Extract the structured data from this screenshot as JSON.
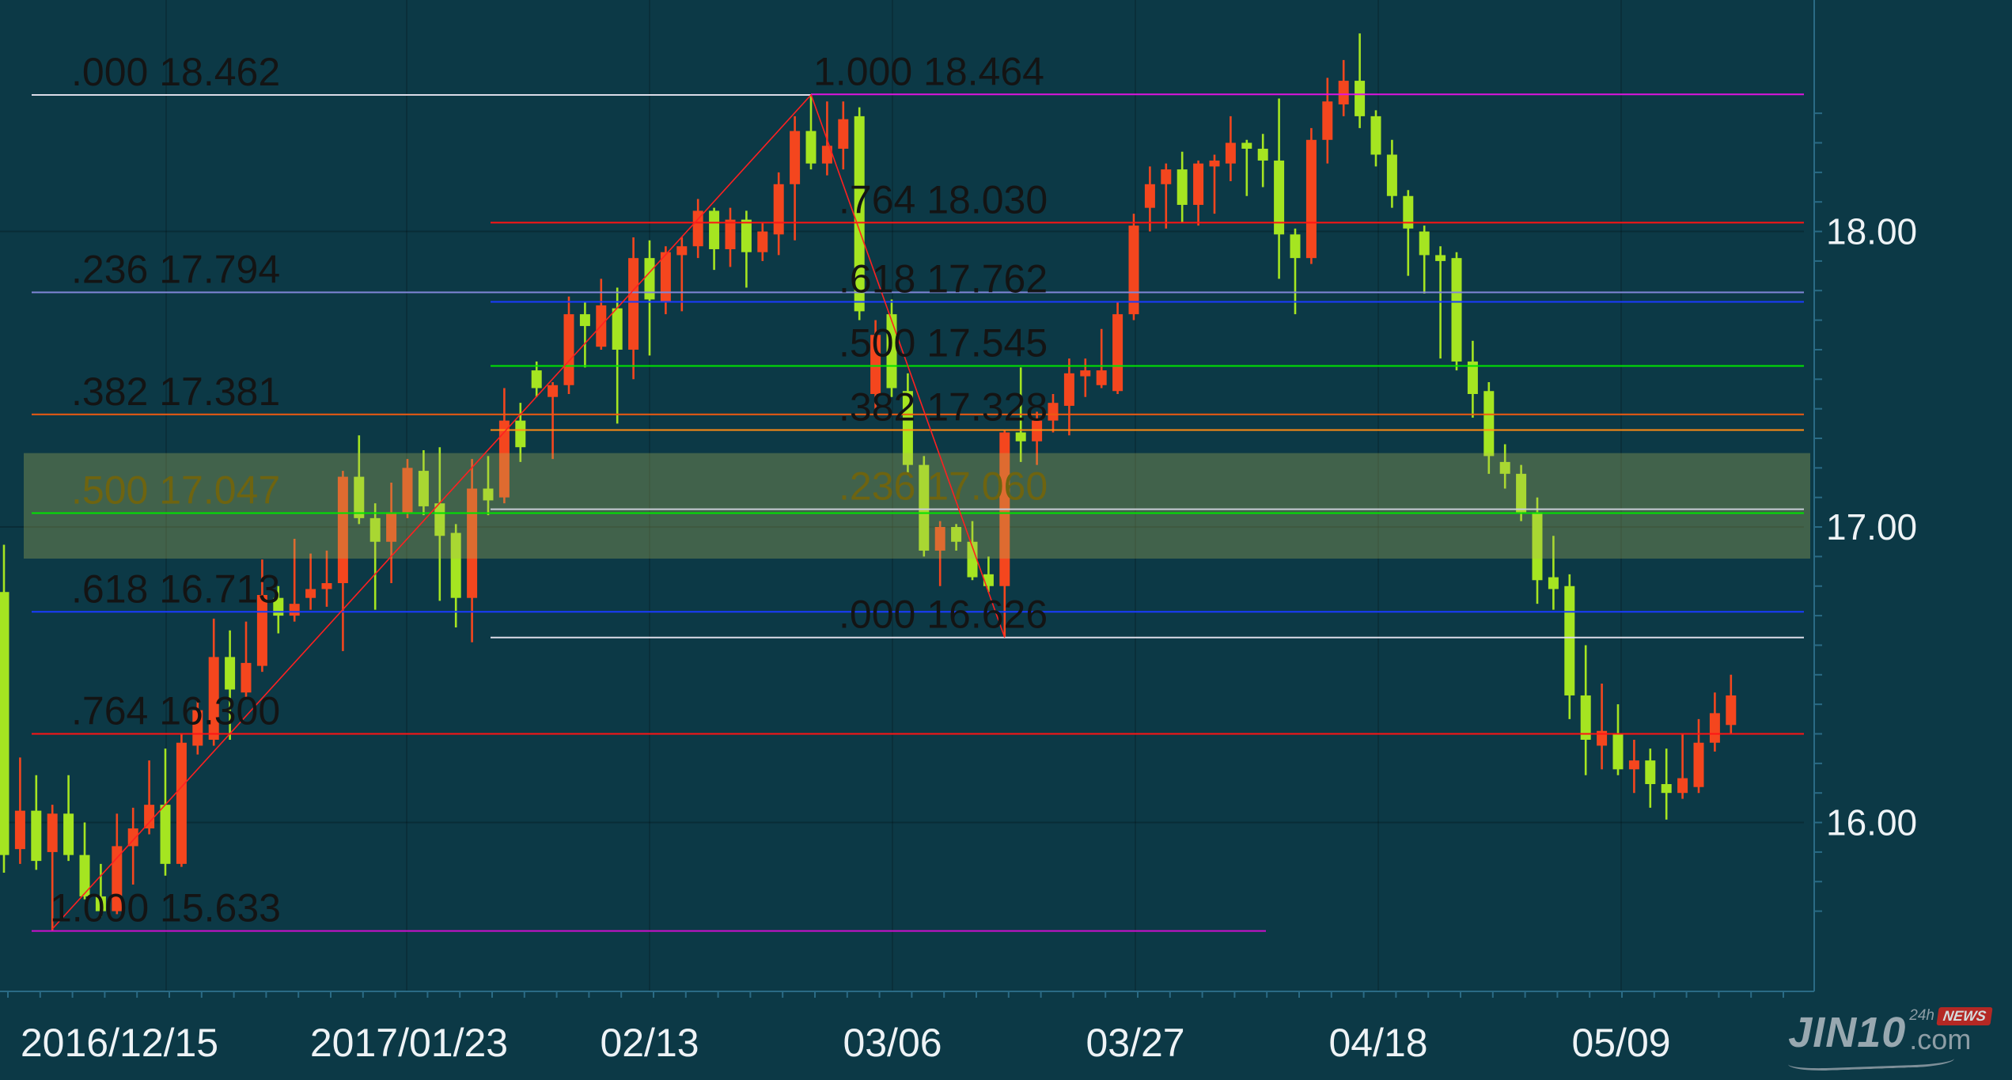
{
  "chart_data": {
    "type": "candlestick",
    "title": "",
    "x_axis": {
      "labels": [
        "2016/12/15",
        "2017/01/23",
        "02/13",
        "03/06",
        "03/27",
        "04/18",
        "05/09"
      ]
    },
    "y_axis": {
      "labels": [
        "18.00",
        "17.00",
        "16.00"
      ],
      "values": [
        18.0,
        17.0,
        16.0
      ],
      "ylim": [
        15.4,
        18.78
      ]
    },
    "candles": {
      "up_color": "#f4461e",
      "down_color": "#a5e521",
      "note_convention": "red = up candle, green = down candle",
      "series": [
        [
          16.78,
          16.94,
          15.83,
          15.89
        ],
        [
          15.91,
          16.22,
          15.86,
          16.04
        ],
        [
          16.04,
          16.16,
          15.84,
          15.87
        ],
        [
          15.9,
          16.06,
          15.633,
          16.03
        ],
        [
          16.03,
          16.16,
          15.87,
          15.89
        ],
        [
          15.89,
          16.0,
          15.74,
          15.75
        ],
        [
          15.75,
          15.86,
          15.68,
          15.7
        ],
        [
          15.7,
          16.03,
          15.69,
          15.92
        ],
        [
          15.92,
          16.05,
          15.79,
          15.98
        ],
        [
          15.98,
          16.21,
          15.96,
          16.06
        ],
        [
          16.06,
          16.25,
          15.82,
          15.86
        ],
        [
          15.86,
          16.3,
          15.85,
          16.27
        ],
        [
          16.26,
          16.42,
          16.23,
          16.38
        ],
        [
          16.28,
          16.69,
          16.26,
          16.56
        ],
        [
          16.56,
          16.65,
          16.28,
          16.45
        ],
        [
          16.44,
          16.68,
          16.42,
          16.54
        ],
        [
          16.53,
          16.89,
          16.51,
          16.77
        ],
        [
          16.76,
          16.8,
          16.64,
          16.7
        ],
        [
          16.7,
          16.96,
          16.68,
          16.74
        ],
        [
          16.76,
          16.91,
          16.72,
          16.79
        ],
        [
          16.79,
          16.92,
          16.73,
          16.81
        ],
        [
          16.81,
          17.19,
          16.58,
          17.17
        ],
        [
          17.17,
          17.31,
          17.01,
          17.03
        ],
        [
          17.03,
          17.08,
          16.72,
          16.95
        ],
        [
          16.95,
          17.15,
          16.81,
          17.05
        ],
        [
          17.05,
          17.23,
          17.03,
          17.2
        ],
        [
          17.19,
          17.26,
          17.04,
          17.07
        ],
        [
          17.08,
          17.27,
          16.75,
          16.97
        ],
        [
          16.98,
          17.01,
          16.66,
          16.76
        ],
        [
          16.76,
          17.23,
          16.61,
          17.13
        ],
        [
          17.13,
          17.24,
          17.04,
          17.09
        ],
        [
          17.1,
          17.47,
          17.08,
          17.36
        ],
        [
          17.36,
          17.42,
          17.22,
          17.27
        ],
        [
          17.53,
          17.56,
          17.44,
          17.47
        ],
        [
          17.44,
          17.49,
          17.23,
          17.48
        ],
        [
          17.48,
          17.78,
          17.45,
          17.72
        ],
        [
          17.72,
          17.76,
          17.54,
          17.68
        ],
        [
          17.61,
          17.84,
          17.6,
          17.75
        ],
        [
          17.74,
          17.81,
          17.35,
          17.6
        ],
        [
          17.6,
          17.98,
          17.5,
          17.91
        ],
        [
          17.91,
          17.97,
          17.58,
          17.77
        ],
        [
          17.76,
          17.95,
          17.72,
          17.93
        ],
        [
          17.92,
          17.98,
          17.73,
          17.95
        ],
        [
          17.95,
          18.11,
          17.91,
          18.07
        ],
        [
          18.07,
          18.08,
          17.87,
          17.94
        ],
        [
          17.94,
          18.08,
          17.88,
          18.04
        ],
        [
          18.04,
          18.07,
          17.81,
          17.93
        ],
        [
          17.93,
          18.03,
          17.9,
          18.0
        ],
        [
          17.99,
          18.2,
          17.92,
          18.16
        ],
        [
          18.16,
          18.39,
          17.97,
          18.34
        ],
        [
          18.34,
          18.462,
          18.21,
          18.23
        ],
        [
          18.23,
          18.44,
          18.19,
          18.29
        ],
        [
          18.28,
          18.44,
          18.21,
          18.38
        ],
        [
          18.39,
          18.42,
          17.7,
          17.73
        ],
        [
          17.45,
          17.7,
          17.37,
          17.65
        ],
        [
          17.72,
          17.77,
          17.44,
          17.47
        ],
        [
          17.46,
          17.52,
          17.18,
          17.21
        ],
        [
          17.21,
          17.24,
          16.9,
          16.92
        ],
        [
          16.92,
          17.02,
          16.8,
          17.0
        ],
        [
          17.0,
          17.01,
          16.92,
          16.95
        ],
        [
          16.95,
          17.02,
          16.82,
          16.83
        ],
        [
          16.84,
          16.9,
          16.78,
          16.8
        ],
        [
          16.8,
          17.33,
          16.626,
          17.32
        ],
        [
          17.32,
          17.54,
          17.22,
          17.29
        ],
        [
          17.29,
          17.39,
          17.21,
          17.36
        ],
        [
          17.36,
          17.45,
          17.32,
          17.42
        ],
        [
          17.41,
          17.57,
          17.31,
          17.52
        ],
        [
          17.51,
          17.57,
          17.44,
          17.53
        ],
        [
          17.48,
          17.67,
          17.47,
          17.53
        ],
        [
          17.46,
          17.76,
          17.45,
          17.72
        ],
        [
          17.72,
          18.06,
          17.7,
          18.02
        ],
        [
          18.08,
          18.22,
          18.0,
          18.16
        ],
        [
          18.16,
          18.23,
          18.01,
          18.21
        ],
        [
          18.21,
          18.27,
          18.03,
          18.09
        ],
        [
          18.09,
          18.24,
          18.02,
          18.23
        ],
        [
          18.22,
          18.26,
          18.06,
          18.24
        ],
        [
          18.23,
          18.39,
          18.17,
          18.3
        ],
        [
          18.3,
          18.31,
          18.12,
          18.28
        ],
        [
          18.28,
          18.33,
          18.15,
          18.24
        ],
        [
          18.24,
          18.45,
          17.84,
          17.99
        ],
        [
          17.99,
          18.01,
          17.72,
          17.91
        ],
        [
          17.91,
          18.35,
          17.89,
          18.31
        ],
        [
          18.31,
          18.52,
          18.23,
          18.44
        ],
        [
          18.43,
          18.58,
          18.39,
          18.51
        ],
        [
          18.51,
          18.67,
          18.35,
          18.39
        ],
        [
          18.39,
          18.41,
          18.22,
          18.26
        ],
        [
          18.26,
          18.31,
          18.08,
          18.12
        ],
        [
          18.12,
          18.14,
          17.85,
          18.01
        ],
        [
          18.0,
          18.02,
          17.79,
          17.92
        ],
        [
          17.92,
          17.95,
          17.57,
          17.9
        ],
        [
          17.91,
          17.93,
          17.53,
          17.56
        ],
        [
          17.56,
          17.63,
          17.37,
          17.45
        ],
        [
          17.46,
          17.49,
          17.18,
          17.24
        ],
        [
          17.22,
          17.28,
          17.13,
          17.18
        ],
        [
          17.18,
          17.21,
          17.02,
          17.05
        ],
        [
          17.05,
          17.1,
          16.74,
          16.82
        ],
        [
          16.83,
          16.97,
          16.72,
          16.79
        ],
        [
          16.8,
          16.84,
          16.35,
          16.43
        ],
        [
          16.43,
          16.6,
          16.16,
          16.28
        ],
        [
          16.26,
          16.47,
          16.18,
          16.31
        ],
        [
          16.3,
          16.4,
          16.16,
          16.18
        ],
        [
          16.18,
          16.28,
          16.1,
          16.21
        ],
        [
          16.21,
          16.25,
          16.05,
          16.13
        ],
        [
          16.13,
          16.25,
          16.01,
          16.1
        ],
        [
          16.1,
          16.3,
          16.08,
          16.15
        ],
        [
          16.12,
          16.35,
          16.1,
          16.27
        ],
        [
          16.27,
          16.44,
          16.24,
          16.37
        ],
        [
          16.33,
          16.5,
          16.3,
          16.43
        ]
      ]
    },
    "fib_retracements": [
      {
        "name": "uptrend retracement 15.633 to 18.462",
        "levels": [
          {
            "level": ".000",
            "price": "18.462",
            "value": 18.462,
            "color": "#dcdce8",
            "label_color": "#141414"
          },
          {
            "level": ".236",
            "price": "17.794",
            "value": 17.794,
            "color": "#8187d8",
            "label_color": "#141414"
          },
          {
            "level": ".382",
            "price": "17.381",
            "value": 17.381,
            "color": "#ee5a10",
            "label_color": "#141414"
          },
          {
            "level": ".500",
            "price": "17.047",
            "value": 17.047,
            "color": "#00e400",
            "label_color": "#6e6410"
          },
          {
            "level": ".618",
            "price": "16.713",
            "value": 16.713,
            "color": "#1a3bff",
            "label_color": "#141414"
          },
          {
            "level": ".764",
            "price": "16.300",
            "value": 16.3,
            "color": "#ff1414",
            "label_color": "#141414"
          },
          {
            "level": "1.000",
            "price": "15.633",
            "value": 15.633,
            "color": "#cc10cc",
            "label_color": "#141414"
          }
        ]
      },
      {
        "name": "downtrend retracement 18.464 to 16.626",
        "levels": [
          {
            "level": "1.000",
            "price": "18.464",
            "value": 18.464,
            "color": "#e014e0",
            "label_color": "#141414"
          },
          {
            "level": ".764",
            "price": "18.030",
            "value": 18.03,
            "color": "#ff1414",
            "label_color": "#141414"
          },
          {
            "level": ".618",
            "price": "17.762",
            "value": 17.762,
            "color": "#1a3bff",
            "label_color": "#141414"
          },
          {
            "level": ".500",
            "price": "17.545",
            "value": 17.545,
            "color": "#00e400",
            "label_color": "#141414"
          },
          {
            "level": ".382",
            "price": "17.328",
            "value": 17.328,
            "color": "#ff8c14",
            "label_color": "#141414"
          },
          {
            "level": ".236",
            "price": "17.060",
            "value": 17.06,
            "color": "#c9cdd6",
            "label_color": "#6e6410"
          },
          {
            "level": ".000",
            "price": "16.626",
            "value": 16.626,
            "color": "#dcdce8",
            "label_color": "#141414"
          }
        ]
      }
    ],
    "trendlines": [
      {
        "from_candle": 3,
        "from_value": 15.64,
        "to_candle": 50,
        "to_value": 18.462,
        "color": "#ff2020"
      },
      {
        "from_candle": 50,
        "from_value": 18.464,
        "to_candle": 62,
        "to_value": 16.626,
        "color": "#ff2020"
      }
    ],
    "highlight_band": {
      "top_value": 17.25,
      "bottom_value": 16.893,
      "color": "rgba(178,186,88,0.32)"
    }
  },
  "watermark": {
    "brand": "JIN10",
    "suffix": ".com",
    "h24": "24h",
    "news": "NEWS"
  }
}
